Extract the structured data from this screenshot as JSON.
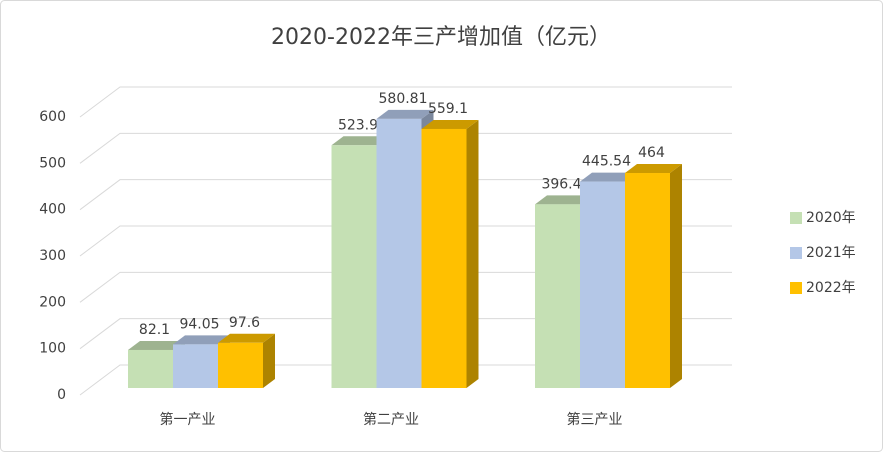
{
  "chart_data": {
    "type": "bar3d",
    "title": "2020-2022年三产增加值（亿元）",
    "categories": [
      "第一产业",
      "第二产业",
      "第三产业"
    ],
    "series": [
      {
        "name": "2020年",
        "color": "#c5e0b4",
        "values": [
          82.1,
          523.9,
          396.4
        ]
      },
      {
        "name": "2021年",
        "color": "#b4c7e7",
        "values": [
          94.05,
          580.81,
          445.54
        ]
      },
      {
        "name": "2022年",
        "color": "#ffc000",
        "values": [
          97.6,
          559.1,
          464
        ]
      }
    ],
    "ylim": [
      0,
      600
    ],
    "yticks": [
      0,
      100,
      200,
      300,
      400,
      500,
      600
    ],
    "grid": true,
    "legend": "right"
  }
}
